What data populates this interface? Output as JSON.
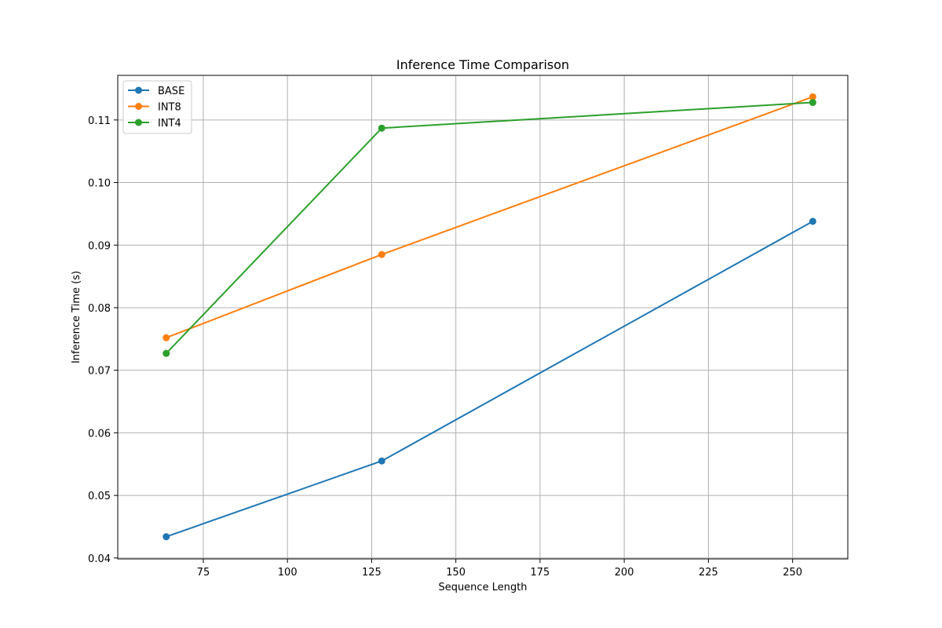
{
  "chart_data": {
    "type": "line",
    "title": "Inference Time Comparison",
    "xlabel": "Sequence Length",
    "ylabel": "Inference Time (s)",
    "xlim": [
      49.6,
      266.4
    ],
    "ylim": [
      0.03985,
      0.11713
    ],
    "x_ticks": [
      75,
      100,
      125,
      150,
      175,
      200,
      225,
      250
    ],
    "y_ticks": [
      0.04,
      0.05,
      0.06,
      0.07,
      0.08,
      0.09,
      0.1,
      0.11
    ],
    "x_tick_labels": [
      "75",
      "100",
      "125",
      "150",
      "175",
      "200",
      "225",
      "250"
    ],
    "y_tick_labels": [
      "0.04",
      "0.05",
      "0.06",
      "0.07",
      "0.08",
      "0.09",
      "0.10",
      "0.11"
    ],
    "grid": true,
    "legend_position": "top-left",
    "x": [
      64,
      128,
      256
    ],
    "series": [
      {
        "name": "BASE",
        "color": "#1f77b4",
        "values": [
          0.0434,
          0.0555,
          0.0938
        ]
      },
      {
        "name": "INT8",
        "color": "#ff7f0e",
        "values": [
          0.0752,
          0.0885,
          0.1137
        ]
      },
      {
        "name": "INT4",
        "color": "#2ca02c",
        "values": [
          0.0727,
          0.1087,
          0.1128
        ]
      }
    ]
  }
}
